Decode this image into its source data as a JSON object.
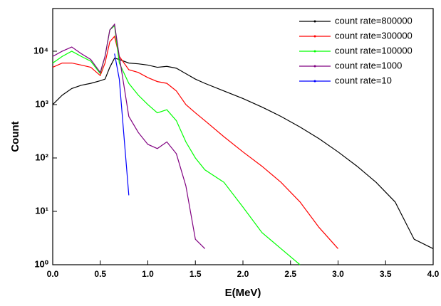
{
  "chart_data": {
    "type": "line",
    "x_label": "E(MeV)",
    "y_label": "Count",
    "x": [
      0,
      0.1,
      0.2,
      0.3,
      0.4,
      0.5,
      0.55,
      0.6,
      0.65,
      0.7,
      0.8,
      0.9,
      1.0,
      1.1,
      1.2,
      1.3,
      1.4,
      1.5,
      1.6,
      1.8,
      2.0,
      2.2,
      2.4,
      2.6,
      2.8,
      3.0,
      3.2,
      3.4,
      3.6,
      3.8,
      4.0
    ],
    "series": [
      {
        "name": "count rate=800000",
        "color": "#000000",
        "values": [
          1000,
          1500,
          2000,
          2300,
          2500,
          2800,
          3000,
          5000,
          7400,
          7000,
          6000,
          5800,
          5500,
          5000,
          5200,
          4800,
          3800,
          3000,
          2500,
          1800,
          1300,
          900,
          600,
          380,
          230,
          130,
          70,
          35,
          15,
          3,
          2
        ]
      },
      {
        "name": "count rate=300000",
        "color": "#ff0000",
        "values": [
          5000,
          6000,
          6000,
          5500,
          5000,
          3500,
          6000,
          15000,
          19000,
          8000,
          4500,
          4000,
          3200,
          2700,
          2500,
          1800,
          1000,
          700,
          500,
          250,
          130,
          70,
          35,
          15,
          5,
          2,
          null,
          null,
          null,
          null,
          null
        ]
      },
      {
        "name": "count rate=100000",
        "color": "#00ff00",
        "values": [
          6000,
          8000,
          10000,
          8000,
          6500,
          3800,
          8000,
          25000,
          30000,
          6000,
          2500,
          1500,
          1000,
          700,
          800,
          500,
          200,
          100,
          60,
          35,
          12,
          4,
          2,
          1,
          null,
          null,
          null,
          null,
          null,
          null,
          null
        ]
      },
      {
        "name": "count rate=1000",
        "color": "#800080",
        "values": [
          8000,
          10000,
          12000,
          9000,
          7000,
          4000,
          8000,
          25000,
          32000,
          8000,
          600,
          300,
          180,
          150,
          200,
          120,
          30,
          3,
          2,
          null,
          null,
          null,
          null,
          null,
          null,
          null,
          null,
          null,
          null,
          null,
          null
        ]
      },
      {
        "name": "count rate=10",
        "color": "#0000ff",
        "values": [
          null,
          null,
          null,
          null,
          null,
          null,
          null,
          null,
          9000,
          3000,
          20,
          null,
          null,
          null,
          null,
          null,
          null,
          null,
          null,
          null,
          null,
          null,
          null,
          null,
          null,
          null,
          null,
          null,
          null,
          null,
          null
        ]
      }
    ],
    "xlim": [
      0,
      4
    ],
    "ylim": [
      1,
      63000
    ],
    "log_y": true,
    "legend": "upper right",
    "xticks": [
      {
        "value": 0,
        "label": "0.0"
      },
      0.5,
      {
        "value": 1,
        "label": "1.0"
      },
      1.5,
      {
        "value": 2,
        "label": "2.0"
      },
      2.5,
      {
        "value": 3,
        "label": "3.0"
      },
      3.5,
      {
        "value": 4,
        "label": "4.0"
      }
    ],
    "yticks": [
      {
        "value": 1,
        "label": "10⁰"
      },
      {
        "value": 10,
        "label": "10¹"
      },
      {
        "value": 100,
        "label": "10²"
      },
      {
        "value": 1000,
        "label": "10³"
      },
      {
        "value": 10000,
        "label": "10⁴"
      }
    ]
  }
}
